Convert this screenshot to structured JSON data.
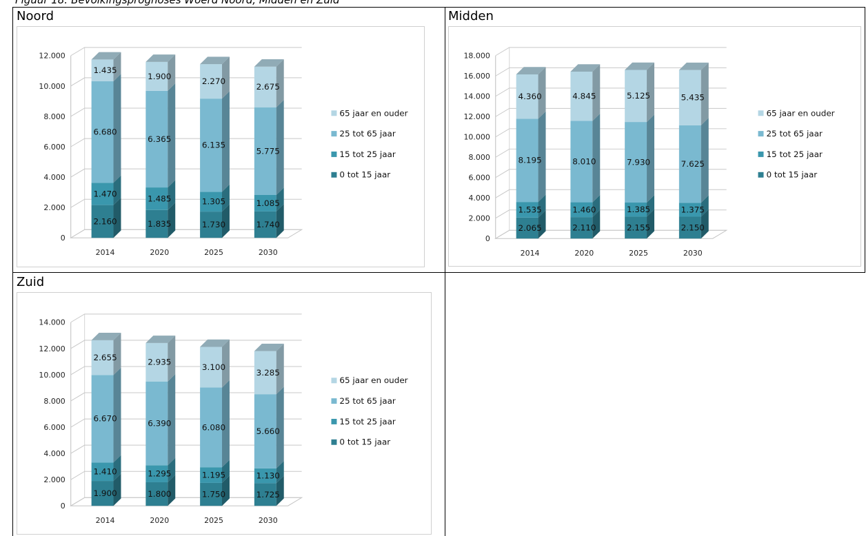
{
  "caption": "Figuur 18: Bevolkingsprognoses Woerd Noord, Midden en Zuid",
  "regions": [
    {
      "title": "Noord"
    },
    {
      "title": "Midden"
    },
    {
      "title": "Zuid"
    }
  ],
  "colors": {
    "age_0_15": "#2e7f91",
    "age_15_25": "#3a97ad",
    "age_25_65": "#7ab9d0",
    "age_65_plus": "#b4d6e4"
  },
  "chart_data": [
    {
      "type": "bar",
      "stacked": true,
      "three_d": true,
      "region": "Noord",
      "categories": [
        "2014",
        "2020",
        "2025",
        "2030"
      ],
      "series": [
        {
          "name": "0 tot 15 jaar",
          "values": [
            2160,
            1835,
            1730,
            1740
          ]
        },
        {
          "name": "15 tot 25 jaar",
          "values": [
            1470,
            1485,
            1305,
            1085
          ]
        },
        {
          "name": "25 tot 65 jaar",
          "values": [
            6680,
            6365,
            6135,
            5775
          ]
        },
        {
          "name": "65 jaar en ouder",
          "values": [
            1435,
            1900,
            2270,
            2675
          ]
        }
      ],
      "data_labels": [
        [
          "2.160",
          "1.835",
          "1.730",
          "1.740"
        ],
        [
          "1.470",
          "1.485",
          "1.305",
          "1.085"
        ],
        [
          "6.680",
          "6.365",
          "6.135",
          "5.775"
        ],
        [
          "1.435",
          "1.900",
          "2.270",
          "2.675"
        ]
      ],
      "y_ticks": [
        "0",
        "2.000",
        "4.000",
        "6.000",
        "8.000",
        "10.000",
        "12.000"
      ],
      "ylim": [
        0,
        12000
      ],
      "legend": "right",
      "grid": true
    },
    {
      "type": "bar",
      "stacked": true,
      "three_d": true,
      "region": "Midden",
      "categories": [
        "2014",
        "2020",
        "2025",
        "2030"
      ],
      "series": [
        {
          "name": "0 tot 15 jaar",
          "values": [
            2065,
            2110,
            2155,
            2150
          ]
        },
        {
          "name": "15 tot 25 jaar",
          "values": [
            1535,
            1460,
            1385,
            1375
          ]
        },
        {
          "name": "25 tot 65 jaar",
          "values": [
            8195,
            8010,
            7930,
            7625
          ]
        },
        {
          "name": "65 jaar en ouder",
          "values": [
            4360,
            4845,
            5125,
            5435
          ]
        }
      ],
      "data_labels": [
        [
          "2.065",
          "2.110",
          "2.155",
          "2.150"
        ],
        [
          "1.535",
          "1.460",
          "1.385",
          "1.375"
        ],
        [
          "8.195",
          "8.010",
          "7.930",
          "7.625"
        ],
        [
          "4.360",
          "4.845",
          "5.125",
          "5.435"
        ]
      ],
      "y_ticks": [
        "0",
        "2.000",
        "4.000",
        "6.000",
        "8.000",
        "10.000",
        "12.000",
        "14.000",
        "16.000",
        "18.000"
      ],
      "ylim": [
        0,
        18000
      ],
      "legend": "right",
      "grid": true
    },
    {
      "type": "bar",
      "stacked": true,
      "three_d": true,
      "region": "Zuid",
      "categories": [
        "2014",
        "2020",
        "2025",
        "2030"
      ],
      "series": [
        {
          "name": "0 tot 15 jaar",
          "values": [
            1900,
            1800,
            1750,
            1725
          ]
        },
        {
          "name": "15 tot 25 jaar",
          "values": [
            1410,
            1295,
            1195,
            1130
          ]
        },
        {
          "name": "25 tot 65 jaar",
          "values": [
            6670,
            6390,
            6080,
            5660
          ]
        },
        {
          "name": "65 jaar en ouder",
          "values": [
            2655,
            2935,
            3100,
            3285
          ]
        }
      ],
      "data_labels": [
        [
          "1.900",
          "1.800",
          "1.750",
          "1.725"
        ],
        [
          "1.410",
          "1.295",
          "1.195",
          "1.130"
        ],
        [
          "6.670",
          "6.390",
          "6.080",
          "5.660"
        ],
        [
          "2.655",
          "2.935",
          "3.100",
          "3.285"
        ]
      ],
      "y_ticks": [
        "0",
        "2.000",
        "4.000",
        "6.000",
        "8.000",
        "10.000",
        "12.000",
        "14.000"
      ],
      "ylim": [
        0,
        14000
      ],
      "legend": "right",
      "grid": true
    }
  ]
}
